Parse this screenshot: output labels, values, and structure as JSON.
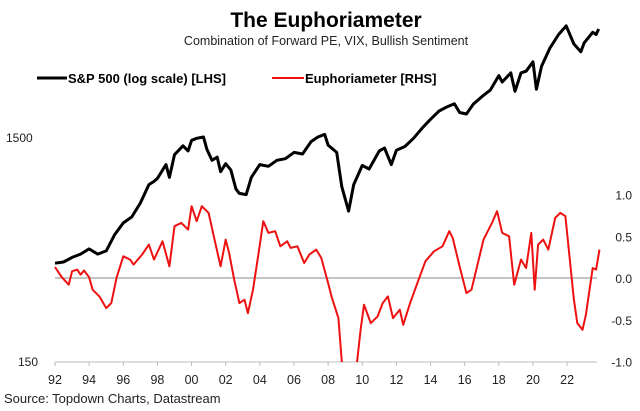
{
  "chart_data": {
    "type": "line",
    "title": "The Euphoriameter",
    "subtitle": "Combination of Forward PE, VIX, Bullish Sentiment",
    "source": "Source: Topdown Charts, Datastream",
    "legend_position": "top-left",
    "grid": false,
    "colors": {
      "sp500": "#000000",
      "euphoria": "#ee1111",
      "zero_line": "#a0a0a0"
    },
    "x_ticks": [
      "92",
      "94",
      "96",
      "98",
      "00",
      "02",
      "04",
      "06",
      "08",
      "10",
      "12",
      "14",
      "16",
      "18",
      "20",
      "22"
    ],
    "x_tick_years": [
      1992,
      1994,
      1996,
      1998,
      2000,
      2002,
      2004,
      2006,
      2008,
      2010,
      2012,
      2014,
      2016,
      2018,
      2020,
      2022
    ],
    "xlim": [
      1992,
      2023.9
    ],
    "left_axis": {
      "scale": "log",
      "ylim": [
        150,
        4900
      ],
      "ticks": [
        "1500",
        "150"
      ],
      "tick_values": [
        1500,
        150
      ]
    },
    "right_axis": {
      "scale": "linear",
      "ylim": [
        -1.0,
        1.0
      ],
      "ticks": [
        "1.0",
        "0.5",
        "0.0",
        "-0.5",
        "-1.0"
      ],
      "tick_values": [
        1.0,
        0.5,
        0.0,
        -0.5,
        -1.0
      ]
    },
    "series": [
      {
        "name": "S&P 500 (log scale) [LHS]",
        "axis": "left",
        "x": [
          1992.0,
          1992.5,
          1993.0,
          1993.5,
          1994.0,
          1994.5,
          1995.0,
          1995.5,
          1996.0,
          1996.5,
          1997.0,
          1997.5,
          1997.8,
          1998.0,
          1998.5,
          1998.7,
          1999.0,
          1999.5,
          1999.8,
          2000.0,
          2000.3,
          2000.7,
          2000.9,
          2001.2,
          2001.5,
          2001.7,
          2002.0,
          2002.3,
          2002.6,
          2002.8,
          2003.2,
          2003.5,
          2004.0,
          2004.5,
          2005.0,
          2005.5,
          2006.0,
          2006.5,
          2007.0,
          2007.4,
          2007.8,
          2008.0,
          2008.5,
          2008.8,
          2009.2,
          2009.5,
          2010.0,
          2010.4,
          2011.0,
          2011.3,
          2011.7,
          2012.0,
          2012.5,
          2013.0,
          2013.5,
          2014.0,
          2014.5,
          2015.0,
          2015.4,
          2015.7,
          2016.1,
          2016.5,
          2017.0,
          2017.5,
          2018.0,
          2018.2,
          2018.7,
          2018.95,
          2019.3,
          2019.6,
          2020.0,
          2020.2,
          2020.5,
          2021.0,
          2021.5,
          2021.95,
          2022.4,
          2022.8,
          2023.0,
          2023.5,
          2023.7,
          2023.85
        ],
        "values": [
          410,
          415,
          435,
          450,
          475,
          450,
          465,
          550,
          620,
          660,
          760,
          920,
          950,
          980,
          1130,
          990,
          1250,
          1370,
          1300,
          1450,
          1480,
          1500,
          1320,
          1180,
          1220,
          1050,
          1140,
          1070,
          880,
          840,
          830,
          990,
          1130,
          1110,
          1180,
          1200,
          1280,
          1260,
          1430,
          1500,
          1540,
          1380,
          1280,
          900,
          700,
          920,
          1120,
          1080,
          1300,
          1340,
          1130,
          1310,
          1360,
          1480,
          1640,
          1800,
          1960,
          2050,
          2110,
          1930,
          1900,
          2100,
          2270,
          2430,
          2820,
          2640,
          2900,
          2400,
          2900,
          2950,
          3250,
          2450,
          3100,
          3750,
          4300,
          4700,
          3900,
          3600,
          3950,
          4400,
          4300,
          4550
        ]
      },
      {
        "name": "Euphoriameter [RHS]",
        "axis": "right",
        "x": [
          1992.0,
          1992.4,
          1992.8,
          1993.0,
          1993.3,
          1993.5,
          1993.7,
          1994.0,
          1994.2,
          1994.6,
          1995.0,
          1995.3,
          1995.6,
          1996.0,
          1996.4,
          1996.6,
          1997.1,
          1997.5,
          1997.8,
          1998.3,
          1998.7,
          1999.0,
          1999.4,
          1999.8,
          2000.0,
          2000.3,
          2000.6,
          2001.0,
          2001.3,
          2001.7,
          2002.0,
          2002.2,
          2002.5,
          2002.8,
          2003.1,
          2003.3,
          2003.6,
          2003.9,
          2004.2,
          2004.5,
          2004.9,
          2005.2,
          2005.6,
          2005.8,
          2006.2,
          2006.6,
          2006.9,
          2007.3,
          2007.6,
          2008.0,
          2008.2,
          2008.6,
          2008.8,
          2009.1,
          2009.4,
          2009.7,
          2009.9,
          2010.1,
          2010.5,
          2010.9,
          2011.2,
          2011.5,
          2011.8,
          2012.2,
          2012.4,
          2012.8,
          2013.3,
          2013.7,
          2014.2,
          2014.7,
          2015.1,
          2015.3,
          2015.7,
          2016.1,
          2016.4,
          2016.8,
          2017.1,
          2017.6,
          2017.9,
          2018.2,
          2018.6,
          2018.9,
          2019.3,
          2019.6,
          2019.9,
          2020.1,
          2020.3,
          2020.6,
          2020.9,
          2021.3,
          2021.6,
          2021.9,
          2022.1,
          2022.4,
          2022.6,
          2022.9,
          2023.1,
          2023.5,
          2023.7,
          2023.9
        ],
        "values": [
          0.13,
          0.01,
          -0.08,
          0.08,
          0.1,
          0.04,
          0.09,
          0.01,
          -0.14,
          -0.22,
          -0.36,
          -0.3,
          0.0,
          0.26,
          0.22,
          0.16,
          0.28,
          0.4,
          0.22,
          0.44,
          0.14,
          0.62,
          0.66,
          0.58,
          0.86,
          0.68,
          0.86,
          0.78,
          0.5,
          0.14,
          0.46,
          0.3,
          -0.02,
          -0.3,
          -0.26,
          -0.42,
          -0.14,
          0.26,
          0.68,
          0.54,
          0.56,
          0.38,
          0.44,
          0.36,
          0.38,
          0.18,
          0.28,
          0.34,
          0.24,
          -0.06,
          -0.22,
          -0.48,
          -1.0,
          -1.3,
          -1.2,
          -1.0,
          -0.62,
          -0.32,
          -0.54,
          -0.46,
          -0.3,
          -0.22,
          -0.48,
          -0.38,
          -0.56,
          -0.3,
          -0.02,
          0.2,
          0.32,
          0.38,
          0.56,
          0.48,
          0.14,
          -0.18,
          -0.14,
          0.2,
          0.46,
          0.66,
          0.8,
          0.54,
          0.5,
          -0.08,
          0.22,
          0.12,
          0.54,
          -0.14,
          0.4,
          0.46,
          0.34,
          0.72,
          0.78,
          0.74,
          0.34,
          -0.26,
          -0.54,
          -0.62,
          -0.44,
          0.12,
          0.1,
          0.34
        ]
      }
    ]
  }
}
